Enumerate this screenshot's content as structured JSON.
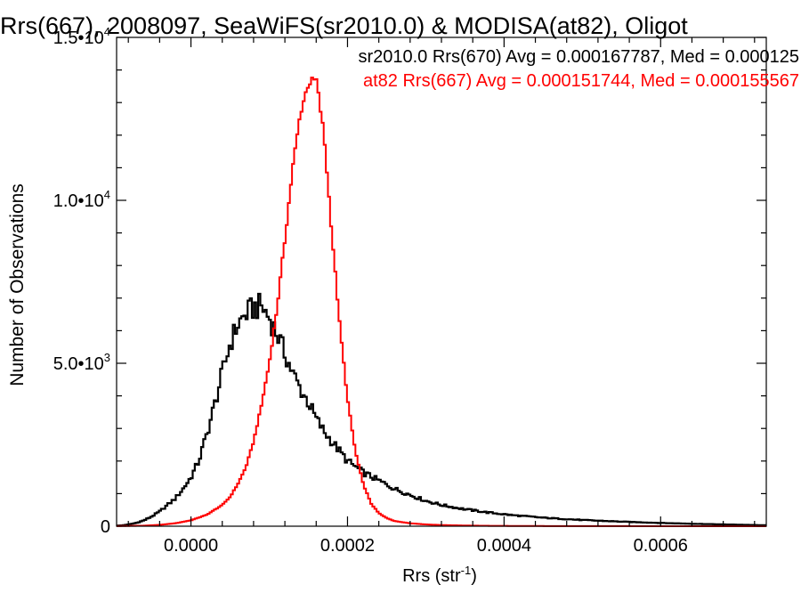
{
  "chart_data": {
    "type": "histogram",
    "title": "Rrs(667), 2008097, SeaWiFS(sr2010.0) & MODISA(at82), Oligot",
    "xlabel": "Rrs (str",
    "xlabel_sup": "-1",
    "xlabel_close": ")",
    "ylabel": "Number of Observations",
    "xlim": [
      -9.5e-05,
      0.000735
    ],
    "ylim": [
      0,
      15000
    ],
    "grid": false,
    "x_ticks": [
      {
        "value": 0.0,
        "label": "0.0000"
      },
      {
        "value": 0.0002,
        "label": "0.0002"
      },
      {
        "value": 0.0004,
        "label": "0.0004"
      },
      {
        "value": 0.0006,
        "label": "0.0006"
      }
    ],
    "y_ticks": [
      {
        "value": 0,
        "mant": "0",
        "exp": ""
      },
      {
        "value": 5000,
        "mant": "5.0•10",
        "exp": "3"
      },
      {
        "value": 10000,
        "mant": "1.0•10",
        "exp": "4"
      },
      {
        "value": 15000,
        "mant": "1.5•10",
        "exp": "4"
      }
    ],
    "legend_position": "top-right",
    "series": [
      {
        "name": "sr2010.0 Rrs(670)",
        "color": "#000000",
        "annotation": "sr2010.0 Rrs(670) Avg = 0.000167787, Med = 0.000125",
        "x": [
          -9e-05,
          -8e-05,
          -7e-05,
          -6e-05,
          -5e-05,
          -4e-05,
          -3e-05,
          -2e-05,
          -1e-05,
          0.0,
          1e-05,
          2e-05,
          3e-05,
          4e-05,
          5e-05,
          6e-05,
          7e-05,
          8e-05,
          9e-05,
          0.0001,
          0.00011,
          0.00012,
          0.00013,
          0.00014,
          0.00015,
          0.00016,
          0.00017,
          0.00018,
          0.00019,
          0.0002,
          0.00022,
          0.00024,
          0.00026,
          0.00028,
          0.0003,
          0.00032,
          0.00035,
          0.00038,
          0.00041,
          0.00045,
          0.0005,
          0.00055,
          0.0006,
          0.00065,
          0.0007,
          0.00073
        ],
        "y": [
          20,
          50,
          100,
          180,
          300,
          450,
          650,
          850,
          1150,
          1500,
          2000,
          2800,
          3700,
          4700,
          5600,
          6200,
          6500,
          6700,
          6750,
          6400,
          5900,
          5300,
          4700,
          4200,
          3800,
          3300,
          2900,
          2600,
          2300,
          2000,
          1650,
          1400,
          1150,
          960,
          780,
          650,
          520,
          420,
          340,
          260,
          190,
          140,
          100,
          70,
          45,
          30
        ]
      },
      {
        "name": "at82 Rrs(667)",
        "color": "#ff0000",
        "annotation": "at82 Rrs(667) Avg = 0.000151744, Med = 0.000155567",
        "x": [
          -9e-05,
          -6e-05,
          -4e-05,
          -2e-05,
          0.0,
          2e-05,
          4e-05,
          5e-05,
          6e-05,
          7e-05,
          8e-05,
          9e-05,
          0.0001,
          0.00011,
          0.00012,
          0.00013,
          0.00014,
          0.00015,
          0.00016,
          0.00017,
          0.00018,
          0.00019,
          0.0002,
          0.00021,
          0.00022,
          0.00023,
          0.00024,
          0.00025,
          0.00026,
          0.00028,
          0.0003,
          0.00032,
          0.00035,
          0.00038,
          0.00041,
          0.00045,
          0.0005,
          0.00055,
          0.0006,
          0.00065,
          0.0007,
          0.00073
        ],
        "y": [
          5,
          15,
          40,
          90,
          180,
          350,
          650,
          900,
          1300,
          1800,
          2600,
          3700,
          5000,
          6700,
          8800,
          11000,
          12700,
          13600,
          13700,
          12000,
          9000,
          6200,
          3900,
          2300,
          1300,
          700,
          400,
          250,
          160,
          90,
          55,
          35,
          20,
          12,
          8,
          5,
          3,
          2,
          1,
          1,
          0,
          0
        ]
      }
    ]
  }
}
